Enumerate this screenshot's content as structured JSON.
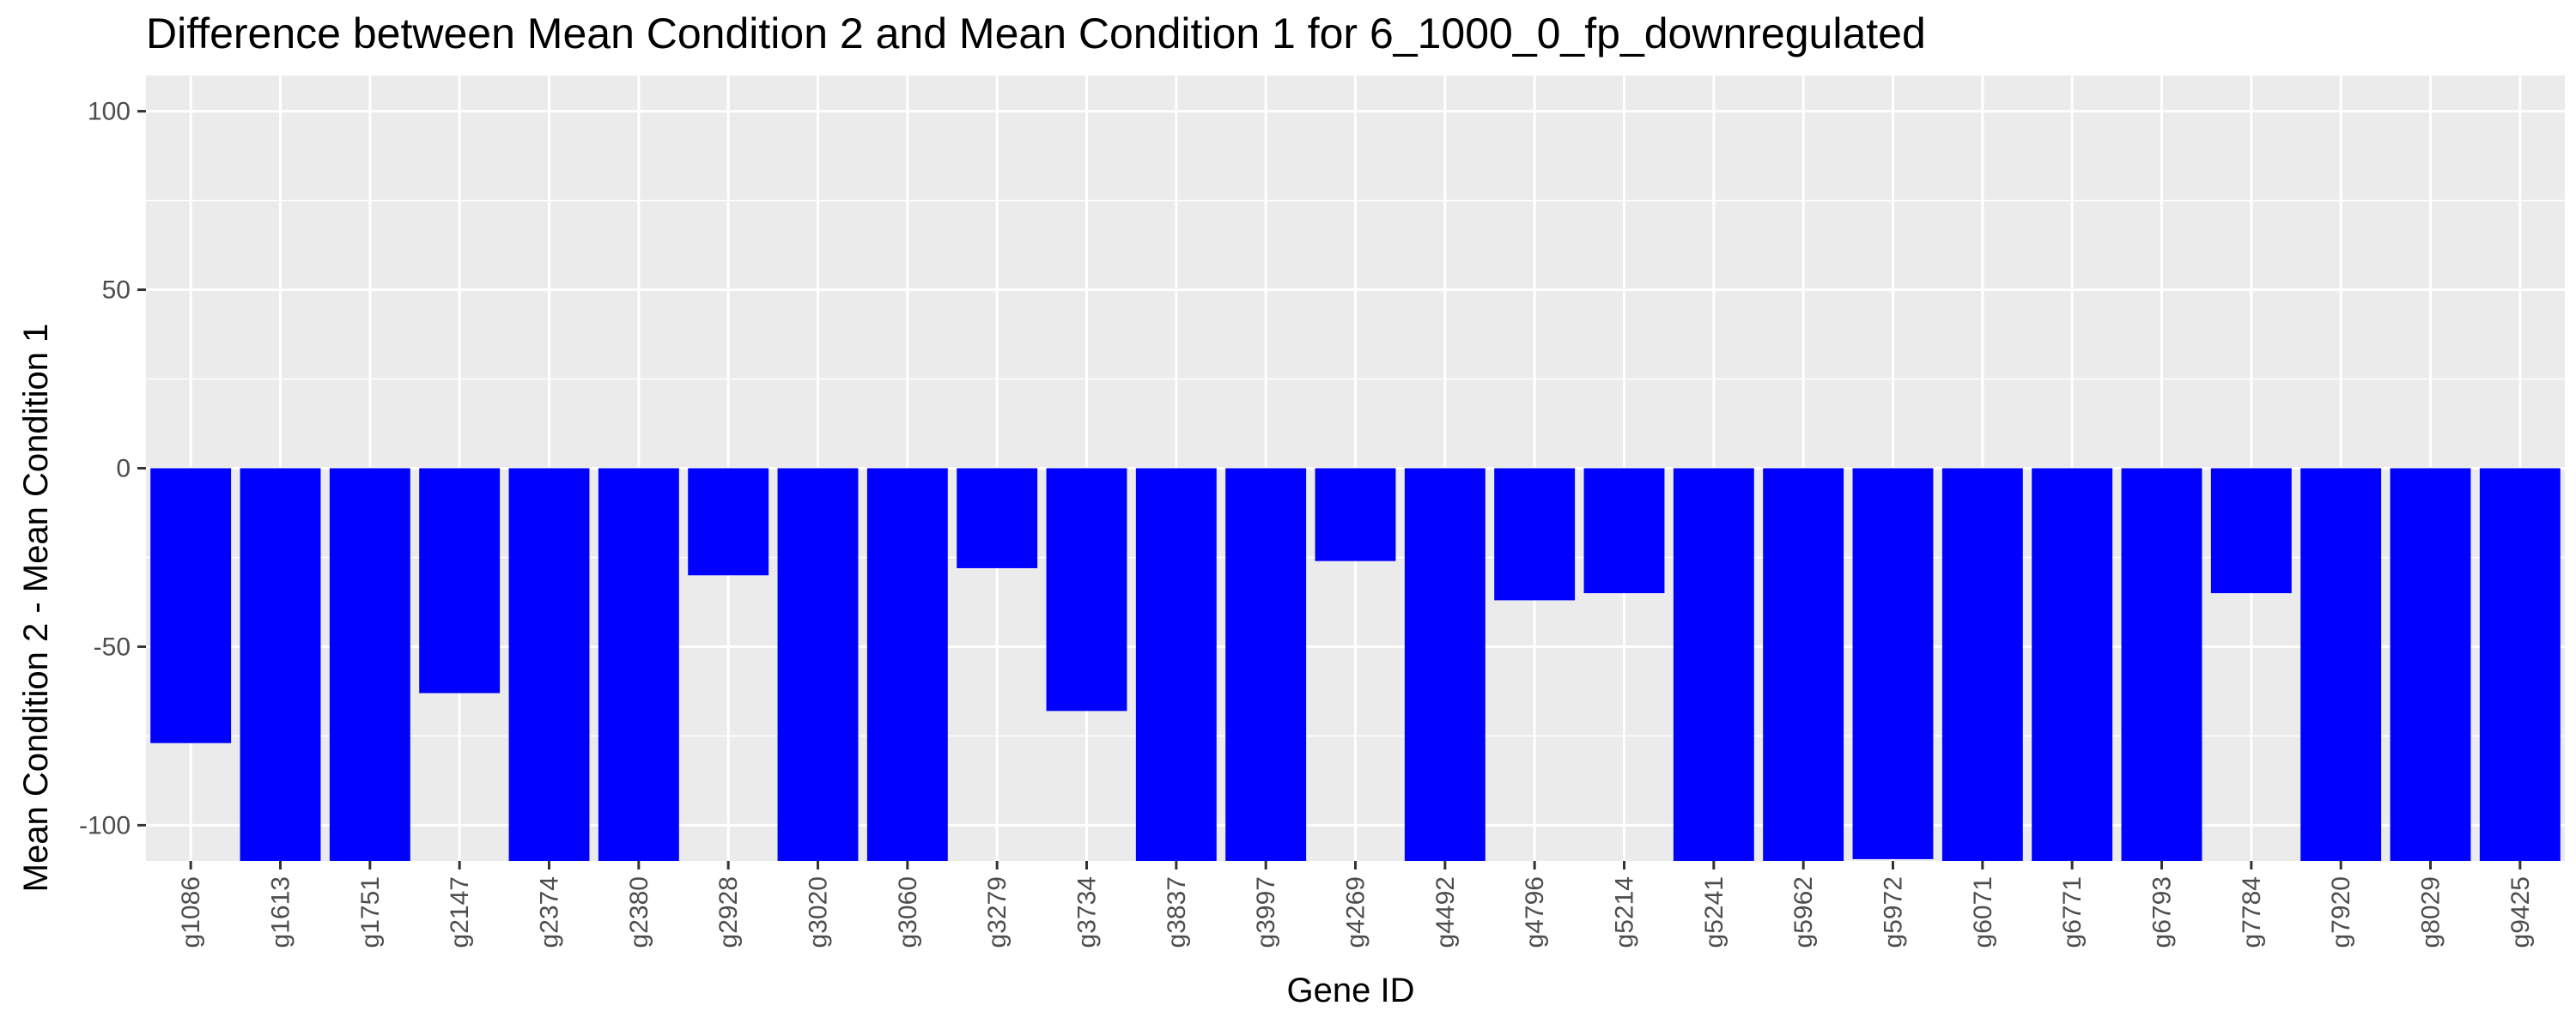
{
  "chart_data": {
    "type": "bar",
    "title": "Difference between Mean Condition 2 and Mean Condition 1 for 6_1000_0_fp_downregulated",
    "xlabel": "Gene ID",
    "ylabel": "Mean Condition 2 - Mean Condition 1",
    "ylim": [
      -110,
      110
    ],
    "yticks": [
      -100,
      -50,
      0,
      50,
      100
    ],
    "grid": true,
    "categories": [
      "g1086",
      "g1613",
      "g1751",
      "g2147",
      "g2374",
      "g2380",
      "g2928",
      "g3020",
      "g3060",
      "g3279",
      "g3734",
      "g3837",
      "g3997",
      "g4269",
      "g4492",
      "g4796",
      "g5214",
      "g5241",
      "g5962",
      "g5972",
      "g6071",
      "g6771",
      "g6793",
      "g7784",
      "g7920",
      "g8029",
      "g9425"
    ],
    "values": [
      -77,
      -110,
      -110,
      -63,
      -110,
      -110,
      -30,
      -110,
      -110,
      -28,
      -68,
      -110,
      -110,
      -26,
      -110,
      -37,
      -35,
      -110,
      -110,
      -109.5,
      -110,
      -110,
      -110,
      -35,
      -110,
      -110,
      -110
    ],
    "colors": {
      "bar": "#0000ff",
      "panel": "#ebebeb",
      "grid_major": "#ffffff",
      "tick_text": "#4d4d4d",
      "tick_mark": "#333333"
    }
  }
}
